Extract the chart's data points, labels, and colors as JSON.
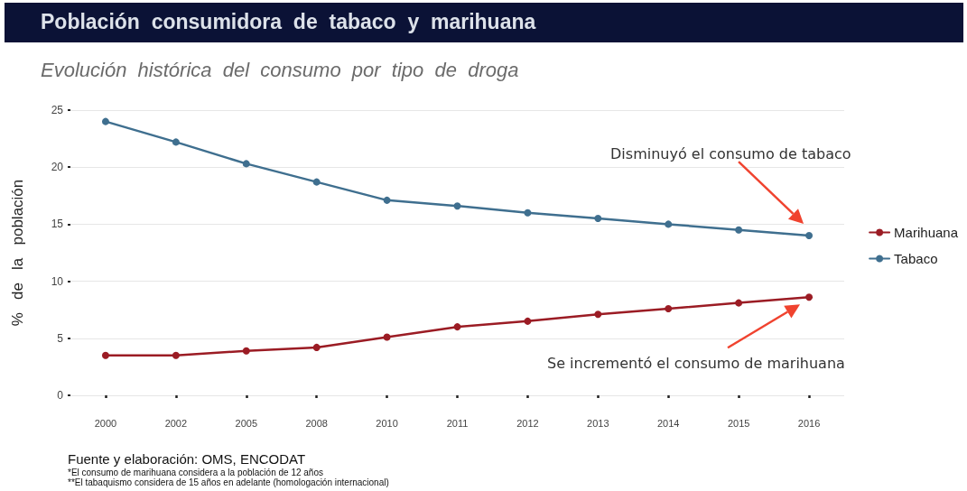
{
  "chart_data": {
    "type": "line",
    "title": "Población  consumidora  de  tabaco  y  marihuana",
    "subtitle": "Evolución  histórica  del  consumo  por  tipo  de  droga",
    "ylabel": "%   de   la   población",
    "categories": [
      "2000",
      "2002",
      "2005",
      "2008",
      "2010",
      "2011",
      "2012",
      "2013",
      "2014",
      "2015",
      "2016"
    ],
    "series": [
      {
        "name": "Marihuana",
        "color": "#9b1c24",
        "values": [
          3.5,
          3.5,
          3.9,
          4.2,
          5.1,
          6.0,
          6.5,
          7.1,
          7.6,
          8.1,
          8.6
        ]
      },
      {
        "name": "Tabaco",
        "color": "#3f6f8f",
        "values": [
          24.0,
          22.2,
          20.3,
          18.7,
          17.1,
          16.6,
          16.0,
          15.5,
          15.0,
          14.5,
          14.0
        ]
      }
    ],
    "ylim": [
      0,
      25
    ],
    "yticks": [
      0,
      5,
      10,
      15,
      20,
      25
    ],
    "grid": "y",
    "legend": "right",
    "marker": "circle",
    "line_style": "solid",
    "annotations": [
      "Disminuyó el consumo de tabaco",
      "Se incrementó el consumo de marihuana",
      "Fuente  y  elaboración:  OMS,  ENCODAT",
      "*El consumo de marihuana considera a la población de 12 años",
      "**El tabaquismo considera de 15 años en adelante (homologación internacional)"
    ]
  }
}
